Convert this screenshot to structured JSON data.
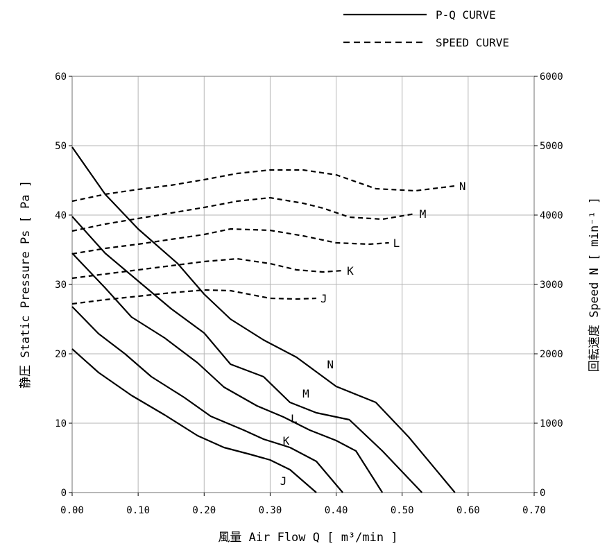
{
  "chart_data": {
    "type": "line",
    "title": "",
    "xlabel": "風量 Air Flow Q [ m³/min ]",
    "ylabel_left": "静圧 Static Pressure Ps [ Pa ]",
    "ylabel_right": "回転速度 Speed N [ min⁻¹ ]",
    "xlim": [
      0,
      0.7
    ],
    "ylim_left": [
      0,
      60
    ],
    "ylim_right": [
      0,
      6000
    ],
    "x_ticks": [
      "0.00",
      "0.10",
      "0.20",
      "0.30",
      "0.40",
      "0.50",
      "0.60",
      "0.70"
    ],
    "y_ticks_left": [
      "0",
      "10",
      "20",
      "30",
      "40",
      "50",
      "60"
    ],
    "y_ticks_right": [
      "0",
      "1000",
      "2000",
      "3000",
      "4000",
      "5000",
      "6000"
    ],
    "grid": true,
    "legend": {
      "position": "top-right",
      "entries": [
        {
          "label": "P-Q CURVE",
          "style": "solid"
        },
        {
          "label": "SPEED CURVE",
          "style": "dashed"
        }
      ]
    },
    "pq_series": [
      {
        "name": "N",
        "x": [
          0.0,
          0.05,
          0.1,
          0.16,
          0.2,
          0.24,
          0.29,
          0.34,
          0.4,
          0.46,
          0.51,
          0.58
        ],
        "y": [
          49.8,
          43.0,
          38.0,
          33.0,
          28.6,
          25.0,
          22.0,
          19.5,
          15.3,
          13.0,
          8.0,
          0.0
        ]
      },
      {
        "name": "M",
        "x": [
          0.0,
          0.05,
          0.1,
          0.15,
          0.2,
          0.24,
          0.29,
          0.33,
          0.37,
          0.42,
          0.47,
          0.53
        ],
        "y": [
          39.8,
          34.5,
          30.5,
          26.5,
          23.0,
          18.5,
          16.7,
          13.0,
          11.5,
          10.5,
          6.0,
          0.0
        ]
      },
      {
        "name": "L",
        "x": [
          0.0,
          0.05,
          0.09,
          0.14,
          0.19,
          0.23,
          0.28,
          0.32,
          0.36,
          0.4,
          0.43,
          0.47
        ],
        "y": [
          34.5,
          29.5,
          25.3,
          22.3,
          18.7,
          15.2,
          12.5,
          10.9,
          9.0,
          7.5,
          6.0,
          0.0
        ]
      },
      {
        "name": "K",
        "x": [
          0.0,
          0.04,
          0.08,
          0.12,
          0.17,
          0.21,
          0.26,
          0.29,
          0.33,
          0.37,
          0.41
        ],
        "y": [
          26.8,
          22.9,
          20.0,
          16.7,
          13.7,
          11.0,
          9.0,
          7.7,
          6.5,
          4.5,
          0.0
        ]
      },
      {
        "name": "J",
        "x": [
          0.0,
          0.04,
          0.09,
          0.14,
          0.19,
          0.23,
          0.27,
          0.3,
          0.33,
          0.37
        ],
        "y": [
          20.7,
          17.3,
          14.0,
          11.2,
          8.2,
          6.5,
          5.5,
          4.7,
          3.3,
          0.0
        ]
      }
    ],
    "speed_series": [
      {
        "name": "N",
        "x": [
          0.0,
          0.05,
          0.1,
          0.15,
          0.2,
          0.25,
          0.3,
          0.35,
          0.4,
          0.46,
          0.52,
          0.58
        ],
        "y": [
          4200,
          4300,
          4370,
          4430,
          4510,
          4600,
          4650,
          4650,
          4580,
          4380,
          4350,
          4420
        ]
      },
      {
        "name": "M",
        "x": [
          0.0,
          0.05,
          0.1,
          0.15,
          0.2,
          0.25,
          0.3,
          0.35,
          0.38,
          0.42,
          0.47,
          0.52
        ],
        "y": [
          3770,
          3870,
          3950,
          4030,
          4110,
          4200,
          4250,
          4170,
          4100,
          3970,
          3940,
          4020
        ]
      },
      {
        "name": "L",
        "x": [
          0.0,
          0.05,
          0.1,
          0.15,
          0.2,
          0.24,
          0.3,
          0.35,
          0.4,
          0.45,
          0.48
        ],
        "y": [
          3440,
          3520,
          3580,
          3650,
          3720,
          3800,
          3780,
          3700,
          3600,
          3580,
          3600
        ]
      },
      {
        "name": "K",
        "x": [
          0.0,
          0.05,
          0.1,
          0.15,
          0.2,
          0.25,
          0.3,
          0.34,
          0.38,
          0.41
        ],
        "y": [
          3090,
          3150,
          3210,
          3270,
          3330,
          3370,
          3300,
          3210,
          3180,
          3200
        ]
      },
      {
        "name": "J",
        "x": [
          0.0,
          0.05,
          0.1,
          0.15,
          0.2,
          0.24,
          0.3,
          0.34,
          0.37
        ],
        "y": [
          2720,
          2780,
          2830,
          2880,
          2920,
          2910,
          2800,
          2790,
          2800
        ]
      }
    ]
  }
}
